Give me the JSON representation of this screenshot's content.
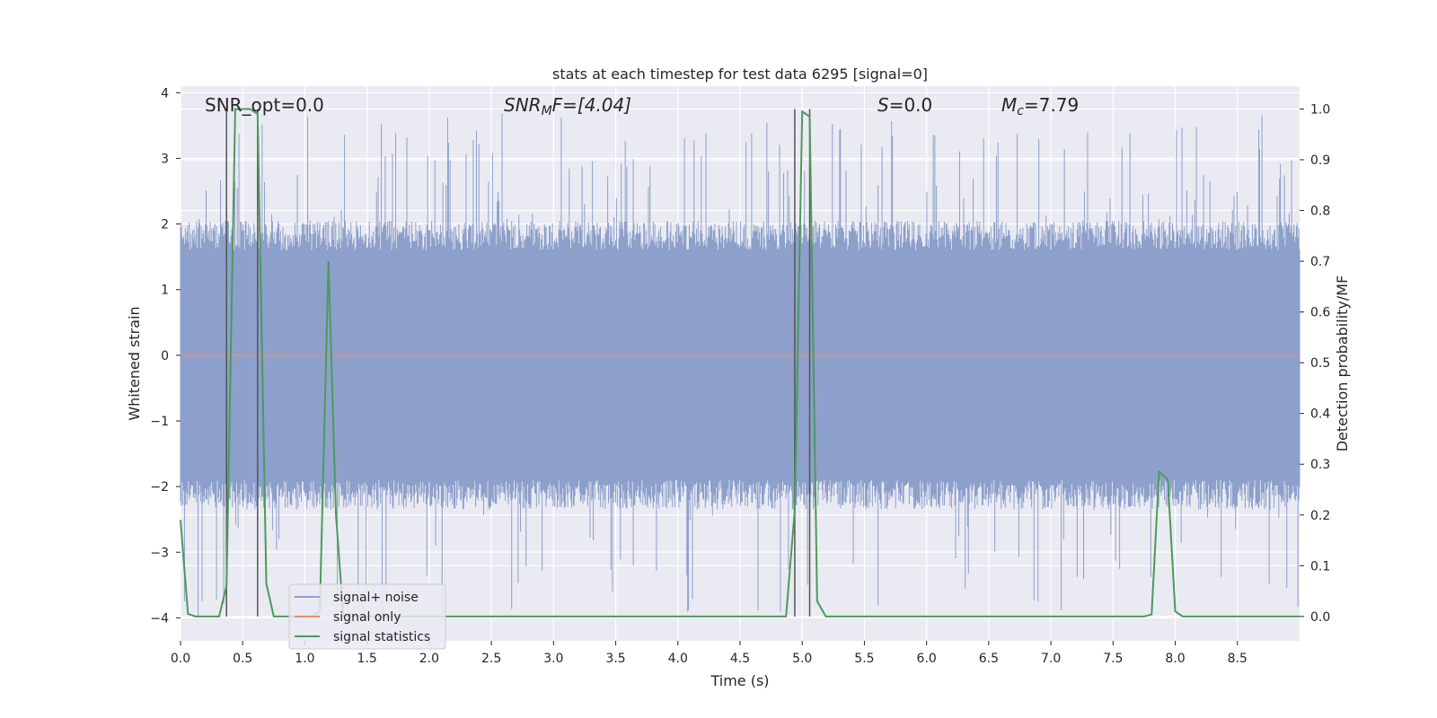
{
  "chart_data": {
    "type": "line",
    "title": "stats at each timestep for test data 6295 [signal=0]",
    "xlabel": "Time (s)",
    "ylabel": "Whitened strain",
    "y2label": "Detection probability/MF",
    "xlim": [
      0.0,
      9.0
    ],
    "ylim": [
      -4.35,
      4.1
    ],
    "y2lim": [
      -0.048,
      1.045
    ],
    "xticks": [
      "0.0",
      "0.5",
      "1.0",
      "1.5",
      "2.0",
      "2.5",
      "3.0",
      "3.5",
      "4.0",
      "4.5",
      "5.0",
      "5.5",
      "6.0",
      "6.5",
      "7.0",
      "7.5",
      "8.0",
      "8.5"
    ],
    "yticks": [
      "−4",
      "−3",
      "−2",
      "−1",
      "0",
      "1",
      "2",
      "3",
      "4"
    ],
    "y2ticks": [
      "0.0",
      "0.1",
      "0.2",
      "0.3",
      "0.4",
      "0.5",
      "0.6",
      "0.7",
      "0.8",
      "0.9",
      "1.0"
    ],
    "grid": true,
    "legend_position": "lower-left",
    "annotations": {
      "snr_opt": "SNR_opt=0.0",
      "snr_mf_main": "SNR",
      "snr_mf_sub": "M",
      "snr_mf_tail": "F=[4.04]",
      "s_main": "S",
      "s_tail": "=0.0",
      "mc_main": "M",
      "mc_sub": "c",
      "mc_tail": "=7.79"
    },
    "series": [
      {
        "name": "signal+ noise",
        "color": "#8da0cb",
        "description_range": [
          -4.0,
          3.7
        ],
        "typical_band": [
          -1.9,
          1.6
        ]
      },
      {
        "name": "signal only",
        "color": "#e5916b",
        "x": [
          0.0,
          9.0
        ],
        "y": [
          0.0,
          0.0
        ]
      },
      {
        "name": "signal statistics",
        "color": "#4c9a5b",
        "axis": "right",
        "x": [
          0.0,
          0.06,
          0.12,
          0.18,
          0.25,
          0.31,
          0.37,
          0.44,
          0.5,
          0.56,
          0.62,
          0.69,
          0.75,
          0.81,
          0.87,
          0.94,
          1.0,
          1.06,
          1.12,
          1.19,
          1.25,
          1.31,
          1.37,
          1.44,
          1.5,
          2.0,
          3.0,
          4.0,
          4.5,
          4.87,
          4.94,
          5.0,
          5.06,
          5.12,
          5.19,
          5.25,
          6.0,
          7.0,
          7.5,
          7.75,
          7.81,
          7.87,
          7.94,
          8.0,
          8.06,
          8.12,
          8.5,
          9.0
        ],
        "y": [
          0.19,
          0.005,
          0.0,
          0.0,
          0.0,
          0.0,
          0.06,
          1.0,
          1.0,
          1.0,
          0.99,
          0.065,
          0.0,
          0.0,
          0.0,
          0.0,
          0.0,
          0.0,
          0.01,
          0.7,
          0.2,
          0.0,
          0.0,
          0.0,
          0.0,
          0.0,
          0.0,
          0.0,
          0.0,
          0.0,
          0.21,
          0.995,
          0.985,
          0.03,
          0.0,
          0.0,
          0.0,
          0.0,
          0.0,
          0.0,
          0.004,
          0.285,
          0.27,
          0.01,
          0.0,
          0.0,
          0.0,
          0.0
        ]
      }
    ],
    "vertical_markers_x": [
      0.37,
      0.62,
      4.94,
      5.06
    ]
  }
}
